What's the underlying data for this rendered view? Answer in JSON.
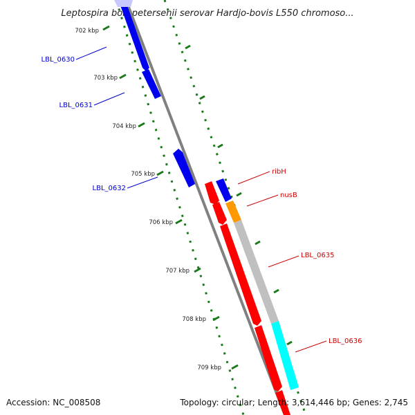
{
  "title": "Leptospira borgpetersenii serovar Hardjo-bovis L550 chromoso...",
  "footer": {
    "accession": "Accession: NC_008508",
    "summary": "Topology: circular; Length: 3,614,446 bp; Genes: 2,745"
  },
  "ticks": [
    "702 kbp",
    "703 kbp",
    "704 kbp",
    "705 kbp",
    "706 kbp",
    "707 kbp",
    "708 kbp",
    "709 kbp"
  ],
  "genes": [
    {
      "label": "LBL_0630",
      "color": "#0000cc"
    },
    {
      "label": "LBL_0631",
      "color": "#0000cc"
    },
    {
      "label": "LBL_0632",
      "color": "#0000cc"
    },
    {
      "label": "ribH",
      "color": "#cc0000"
    },
    {
      "label": "nusB",
      "color": "#cc0000"
    },
    {
      "label": "LBL_0635",
      "color": "#cc0000"
    },
    {
      "label": "LBL_0636",
      "color": "#cc0000"
    }
  ],
  "colors": {
    "backbone": "#808080",
    "tick": "#1a7a1a",
    "forward_cds": "#0000ee",
    "reverse_cds": "#ff0000",
    "orange": "#ff9900",
    "gray_feature": "#c0c0c0",
    "cyan_feature": "#00ffff"
  }
}
